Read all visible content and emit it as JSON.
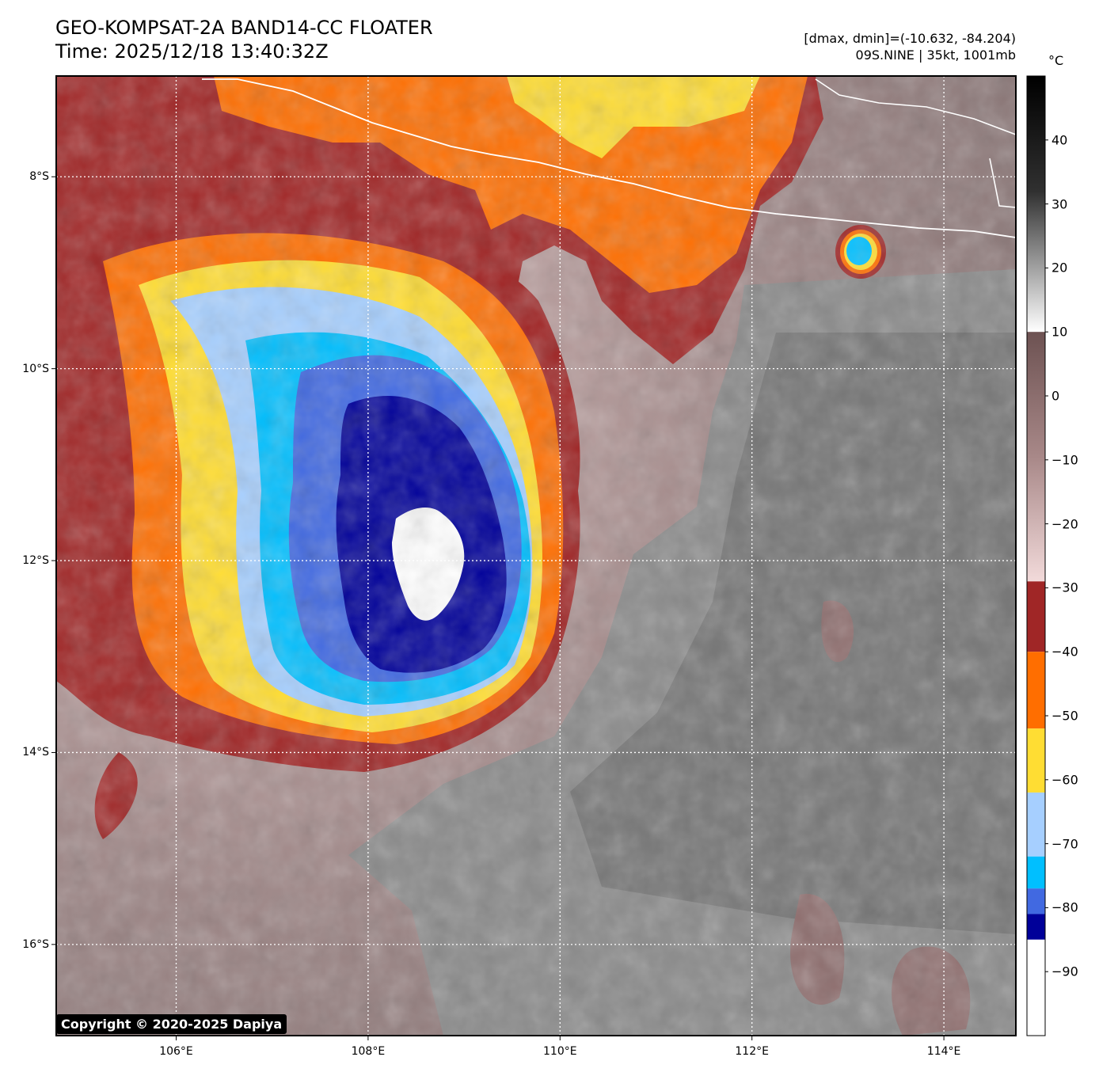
{
  "title": {
    "line1": "GEO-KOMPSAT-2A BAND14-CC FLOATER",
    "line2": "Time: 2025/12/18 13:40:32Z"
  },
  "info": {
    "line1": "[dmax, dmin]=(-10.632, -84.204)",
    "line2": "09S.NINE | 35kt, 1001mb"
  },
  "colorbar": {
    "unit": "°C",
    "ticks": [
      {
        "value": 40,
        "label": "40"
      },
      {
        "value": 30,
        "label": "30"
      },
      {
        "value": 20,
        "label": "20"
      },
      {
        "value": 10,
        "label": "10"
      },
      {
        "value": 0,
        "label": "0"
      },
      {
        "value": -10,
        "label": "−10"
      },
      {
        "value": -20,
        "label": "−20"
      },
      {
        "value": -30,
        "label": "−30"
      },
      {
        "value": -40,
        "label": "−40"
      },
      {
        "value": -50,
        "label": "−50"
      },
      {
        "value": -60,
        "label": "−60"
      },
      {
        "value": -70,
        "label": "−70"
      },
      {
        "value": -80,
        "label": "−80"
      },
      {
        "value": -90,
        "label": "−90"
      }
    ],
    "range": [
      -100,
      50
    ],
    "bands": [
      {
        "from": 10,
        "to": 50,
        "color": "gradient-gray"
      },
      {
        "from": -29,
        "to": 10,
        "color": "gradient-brownpink"
      },
      {
        "from": -40,
        "to": -29,
        "color": "#a02626"
      },
      {
        "from": -52,
        "to": -40,
        "color": "#ff6e00"
      },
      {
        "from": -62,
        "to": -52,
        "color": "#ffdd33"
      },
      {
        "from": -72,
        "to": -62,
        "color": "#a6cfff"
      },
      {
        "from": -77,
        "to": -72,
        "color": "#00bfff"
      },
      {
        "from": -81,
        "to": -77,
        "color": "#4169e1"
      },
      {
        "from": -85,
        "to": -81,
        "color": "#000099"
      },
      {
        "from": -100,
        "to": -85,
        "color": "#ffffff"
      }
    ]
  },
  "map": {
    "lon_ticks": [
      {
        "value": 106,
        "label": "106°E"
      },
      {
        "value": 108,
        "label": "108°E"
      },
      {
        "value": 110,
        "label": "110°E"
      },
      {
        "value": 112,
        "label": "112°E"
      },
      {
        "value": 114,
        "label": "114°E"
      }
    ],
    "lat_ticks": [
      {
        "value": -8,
        "label": "8°S"
      },
      {
        "value": -10,
        "label": "10°S"
      },
      {
        "value": -12,
        "label": "12°S"
      },
      {
        "value": -14,
        "label": "14°S"
      },
      {
        "value": -16,
        "label": "16°S"
      }
    ],
    "lon_range": [
      104.75,
      114.75
    ],
    "lat_range": [
      -16.95,
      -6.95
    ],
    "storm_center": {
      "lon": 108.6,
      "lat": -11.9
    }
  },
  "copyright": "Copyright © 2020-2025 Dapiya"
}
